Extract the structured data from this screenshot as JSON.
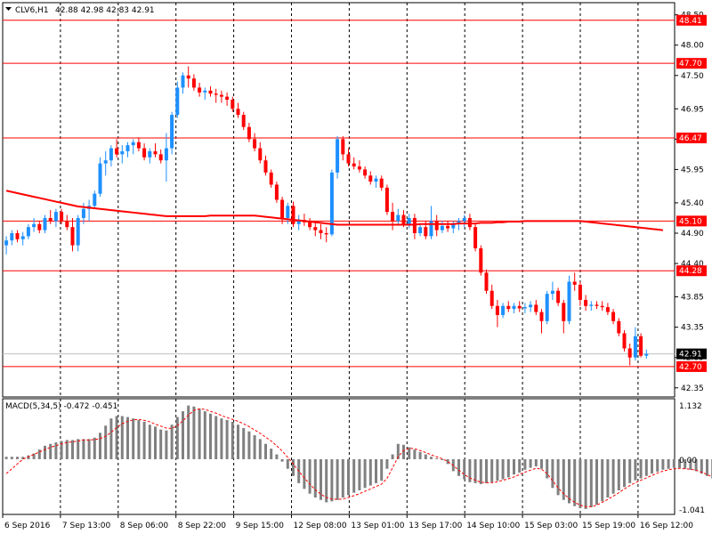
{
  "header": {
    "symbol": "CLV6,H1",
    "quote": "42.88 42.98 42.83 42.91"
  },
  "macd": {
    "label": "MACD(5,34,5) -0.472 -0.451",
    "ticks": [
      "1.132",
      "0.00",
      "-1.041"
    ]
  },
  "colors": {
    "background": "#ffffff",
    "bull": "#1e90ff",
    "bear": "#ff0000",
    "level": "#ff0000",
    "ma": "#ff0000",
    "histogram": "#808080",
    "signal": "#ff0000",
    "grid": "#000000",
    "current_line": "#c0c0c0",
    "current_badge": "#000000"
  },
  "icons": {
    "menu": "triangle-down-icon"
  },
  "price_ticks": [
    "48.50",
    "48.00",
    "47.50",
    "46.95",
    "46.45",
    "45.95",
    "45.40",
    "44.90",
    "44.40",
    "43.85",
    "43.35",
    "42.85",
    "42.35"
  ],
  "time_labels": [
    "6 Sep 2016",
    "7 Sep 13:00",
    "8 Sep 06:00",
    "8 Sep 22:00",
    "9 Sep 15:00",
    "12 Sep 08:00",
    "13 Sep 01:00",
    "13 Sep 17:00",
    "14 Sep 10:00",
    "15 Sep 03:00",
    "15 Sep 19:00",
    "16 Sep 12:00"
  ],
  "chart_data": {
    "type": "candlestick",
    "symbol": "CLV6",
    "timeframe": "H1",
    "ylim": [
      42.2,
      48.7
    ],
    "current_price": 42.91,
    "levels": [
      48.41,
      47.7,
      46.47,
      45.1,
      44.28,
      42.7
    ],
    "level_labels": [
      "48.41",
      "47.70",
      "46.47",
      "45.10",
      "44.28",
      "42.70"
    ],
    "current_label": "42.91",
    "candles": [
      [
        44.7,
        44.85,
        44.55,
        44.78
      ],
      [
        44.78,
        44.95,
        44.7,
        44.9
      ],
      [
        44.9,
        44.95,
        44.75,
        44.8
      ],
      [
        44.8,
        44.92,
        44.7,
        44.85
      ],
      [
        44.85,
        45.05,
        44.8,
        45.0
      ],
      [
        45.0,
        45.15,
        44.92,
        45.05
      ],
      [
        45.05,
        45.1,
        44.9,
        44.95
      ],
      [
        44.95,
        45.2,
        44.9,
        45.15
      ],
      [
        45.15,
        45.28,
        45.05,
        45.1
      ],
      [
        45.1,
        45.3,
        45.0,
        45.25
      ],
      [
        45.25,
        45.3,
        45.05,
        45.1
      ],
      [
        45.1,
        45.2,
        44.95,
        45.0
      ],
      [
        45.0,
        45.15,
        44.6,
        44.7
      ],
      [
        44.7,
        45.2,
        44.6,
        45.15
      ],
      [
        45.15,
        45.4,
        45.05,
        45.3
      ],
      [
        45.3,
        45.45,
        45.1,
        45.35
      ],
      [
        45.35,
        45.6,
        45.3,
        45.55
      ],
      [
        45.55,
        46.15,
        45.5,
        46.05
      ],
      [
        46.05,
        46.25,
        45.85,
        46.1
      ],
      [
        46.1,
        46.35,
        46.0,
        46.3
      ],
      [
        46.3,
        46.45,
        46.15,
        46.2
      ],
      [
        46.2,
        46.35,
        46.05,
        46.25
      ],
      [
        46.25,
        46.4,
        46.15,
        46.35
      ],
      [
        46.35,
        46.45,
        46.2,
        46.4
      ],
      [
        46.4,
        46.48,
        46.25,
        46.3
      ],
      [
        46.3,
        46.38,
        46.1,
        46.15
      ],
      [
        46.15,
        46.3,
        46.05,
        46.25
      ],
      [
        46.25,
        46.38,
        46.15,
        46.2
      ],
      [
        46.2,
        46.28,
        46.05,
        46.1
      ],
      [
        46.1,
        46.55,
        45.75,
        46.3
      ],
      [
        46.3,
        46.9,
        46.2,
        46.85
      ],
      [
        46.85,
        47.4,
        46.8,
        47.3
      ],
      [
        47.3,
        47.55,
        47.2,
        47.5
      ],
      [
        47.5,
        47.65,
        47.3,
        47.45
      ],
      [
        47.45,
        47.52,
        47.25,
        47.3
      ],
      [
        47.3,
        47.38,
        47.15,
        47.22
      ],
      [
        47.22,
        47.3,
        47.1,
        47.25
      ],
      [
        47.25,
        47.32,
        47.15,
        47.2
      ],
      [
        47.2,
        47.28,
        47.05,
        47.18
      ],
      [
        47.18,
        47.25,
        47.05,
        47.15
      ],
      [
        47.15,
        47.22,
        47.0,
        47.1
      ],
      [
        47.1,
        47.15,
        46.9,
        46.95
      ],
      [
        46.95,
        47.05,
        46.8,
        46.85
      ],
      [
        46.85,
        46.9,
        46.6,
        46.65
      ],
      [
        46.65,
        46.72,
        46.4,
        46.45
      ],
      [
        46.45,
        46.55,
        46.25,
        46.3
      ],
      [
        46.3,
        46.4,
        46.05,
        46.1
      ],
      [
        46.1,
        46.18,
        45.85,
        45.9
      ],
      [
        45.9,
        45.95,
        45.65,
        45.7
      ],
      [
        45.7,
        45.75,
        45.4,
        45.45
      ],
      [
        45.45,
        45.5,
        45.05,
        45.15
      ],
      [
        45.15,
        45.4,
        45.05,
        45.35
      ],
      [
        45.35,
        45.42,
        45.0,
        45.05
      ],
      [
        45.05,
        45.2,
        44.95,
        45.12
      ],
      [
        45.12,
        45.22,
        45.02,
        45.08
      ],
      [
        45.08,
        45.15,
        44.95,
        45.0
      ],
      [
        45.0,
        45.1,
        44.85,
        44.95
      ],
      [
        44.95,
        45.05,
        44.8,
        44.9
      ],
      [
        44.9,
        45.0,
        44.75,
        44.88
      ],
      [
        44.88,
        45.95,
        44.85,
        45.9
      ],
      [
        45.9,
        46.5,
        45.8,
        46.45
      ],
      [
        46.45,
        46.5,
        46.1,
        46.2
      ],
      [
        46.2,
        46.3,
        46.0,
        46.05
      ],
      [
        46.05,
        46.15,
        45.95,
        46.0
      ],
      [
        46.0,
        46.1,
        45.9,
        45.95
      ],
      [
        45.95,
        46.0,
        45.8,
        45.85
      ],
      [
        45.85,
        45.92,
        45.7,
        45.75
      ],
      [
        45.75,
        45.85,
        45.65,
        45.8
      ],
      [
        45.8,
        45.85,
        45.6,
        45.65
      ],
      [
        45.65,
        45.7,
        45.2,
        45.25
      ],
      [
        45.25,
        45.4,
        44.95,
        45.1
      ],
      [
        45.1,
        45.3,
        45.05,
        45.2
      ],
      [
        45.2,
        45.28,
        45.0,
        45.05
      ],
      [
        45.05,
        45.22,
        44.98,
        45.15
      ],
      [
        45.15,
        45.22,
        44.8,
        44.9
      ],
      [
        44.9,
        45.05,
        44.85,
        45.0
      ],
      [
        45.0,
        45.1,
        44.8,
        44.85
      ],
      [
        44.85,
        45.35,
        44.8,
        45.1
      ],
      [
        45.1,
        45.2,
        44.85,
        44.95
      ],
      [
        44.95,
        45.1,
        44.9,
        45.02
      ],
      [
        45.02,
        45.1,
        44.92,
        44.98
      ],
      [
        44.98,
        45.1,
        44.9,
        45.05
      ],
      [
        45.05,
        45.15,
        44.95,
        45.1
      ],
      [
        45.1,
        45.2,
        45.0,
        45.15
      ],
      [
        45.15,
        45.22,
        44.95,
        45.0
      ],
      [
        45.0,
        45.05,
        44.6,
        44.65
      ],
      [
        44.65,
        44.7,
        44.2,
        44.25
      ],
      [
        44.25,
        44.3,
        43.9,
        43.95
      ],
      [
        43.95,
        44.05,
        43.65,
        43.7
      ],
      [
        43.7,
        43.8,
        43.35,
        43.55
      ],
      [
        43.55,
        43.75,
        43.5,
        43.7
      ],
      [
        43.7,
        43.78,
        43.6,
        43.65
      ],
      [
        43.65,
        43.75,
        43.58,
        43.7
      ],
      [
        43.7,
        43.78,
        43.6,
        43.66
      ],
      [
        43.66,
        43.75,
        43.58,
        43.68
      ],
      [
        43.68,
        43.78,
        43.6,
        43.72
      ],
      [
        43.72,
        43.8,
        43.55,
        43.6
      ],
      [
        43.6,
        43.65,
        43.25,
        43.45
      ],
      [
        43.45,
        43.95,
        43.4,
        43.9
      ],
      [
        43.9,
        44.1,
        43.8,
        43.95
      ],
      [
        43.95,
        44.0,
        43.7,
        43.75
      ],
      [
        43.75,
        43.8,
        43.25,
        43.45
      ],
      [
        43.45,
        44.2,
        43.4,
        44.1
      ],
      [
        44.1,
        44.25,
        43.95,
        44.05
      ],
      [
        44.05,
        44.1,
        43.7,
        43.8
      ],
      [
        43.8,
        43.88,
        43.62,
        43.7
      ],
      [
        43.7,
        43.78,
        43.62,
        43.72
      ],
      [
        43.72,
        43.78,
        43.65,
        43.7
      ],
      [
        43.7,
        43.78,
        43.62,
        43.68
      ],
      [
        43.68,
        43.75,
        43.55,
        43.6
      ],
      [
        43.6,
        43.65,
        43.4,
        43.45
      ],
      [
        43.45,
        43.5,
        43.2,
        43.25
      ],
      [
        43.25,
        43.3,
        42.95,
        43.0
      ],
      [
        43.0,
        43.08,
        42.72,
        42.85
      ],
      [
        42.85,
        43.35,
        42.8,
        43.2
      ],
      [
        43.2,
        43.25,
        42.85,
        42.88
      ],
      [
        42.88,
        42.98,
        42.83,
        42.91
      ]
    ],
    "moving_average": [
      45.6,
      45.58,
      45.56,
      45.54,
      45.52,
      45.5,
      45.48,
      45.46,
      45.44,
      45.42,
      45.4,
      45.38,
      45.36,
      45.34,
      45.33,
      45.32,
      45.31,
      45.3,
      45.29,
      45.28,
      45.27,
      45.26,
      45.25,
      45.24,
      45.23,
      45.22,
      45.21,
      45.2,
      45.19,
      45.18,
      45.18,
      45.18,
      45.18,
      45.18,
      45.18,
      45.18,
      45.18,
      45.19,
      45.19,
      45.19,
      45.19,
      45.19,
      45.19,
      45.19,
      45.19,
      45.19,
      45.18,
      45.17,
      45.16,
      45.15,
      45.14,
      45.13,
      45.12,
      45.11,
      45.1,
      45.09,
      45.08,
      45.07,
      45.06,
      45.05,
      45.04,
      45.04,
      45.04,
      45.04,
      45.04,
      45.04,
      45.04,
      45.04,
      45.04,
      45.04,
      45.04,
      45.04,
      45.04,
      45.04,
      45.04,
      45.05,
      45.05,
      45.05,
      45.05,
      45.05,
      45.05,
      45.05,
      45.06,
      45.06,
      45.06,
      45.06,
      45.07,
      45.07,
      45.07,
      45.08,
      45.08,
      45.09,
      45.09,
      45.09,
      45.1,
      45.1,
      45.1,
      45.1,
      45.1,
      45.1,
      45.1,
      45.1,
      45.1,
      45.1,
      45.1,
      45.09,
      45.08,
      45.07,
      45.06,
      45.05,
      45.04,
      45.03,
      45.02,
      45.01,
      45.0,
      44.99,
      44.98,
      44.97,
      44.96,
      44.95
    ],
    "macd_histogram": [
      0.05,
      0.05,
      0.05,
      0.05,
      0.08,
      0.12,
      0.2,
      0.28,
      0.32,
      0.35,
      0.38,
      0.4,
      0.4,
      0.42,
      0.42,
      0.42,
      0.45,
      0.55,
      0.7,
      0.85,
      0.9,
      0.9,
      0.88,
      0.85,
      0.82,
      0.78,
      0.72,
      0.68,
      0.62,
      0.6,
      0.72,
      0.88,
      1.0,
      1.12,
      1.1,
      1.05,
      1.0,
      0.95,
      0.9,
      0.85,
      0.82,
      0.78,
      0.72,
      0.65,
      0.58,
      0.5,
      0.42,
      0.32,
      0.22,
      0.1,
      -0.05,
      -0.2,
      -0.35,
      -0.5,
      -0.62,
      -0.72,
      -0.8,
      -0.85,
      -0.9,
      -0.88,
      -0.85,
      -0.8,
      -0.75,
      -0.7,
      -0.65,
      -0.6,
      -0.55,
      -0.5,
      -0.45,
      -0.2,
      0.1,
      0.32,
      0.3,
      0.25,
      0.2,
      0.15,
      0.1,
      0.05,
      0.02,
      -0.02,
      -0.1,
      -0.25,
      -0.35,
      -0.42,
      -0.48,
      -0.5,
      -0.52,
      -0.5,
      -0.48,
      -0.45,
      -0.42,
      -0.38,
      -0.32,
      -0.28,
      -0.22,
      -0.18,
      -0.15,
      -0.2,
      -0.4,
      -0.6,
      -0.75,
      -0.85,
      -0.92,
      -0.98,
      -1.02,
      -1.04,
      -1.0,
      -0.95,
      -0.88,
      -0.8,
      -0.72,
      -0.65,
      -0.58,
      -0.5,
      -0.44,
      -0.4,
      -0.35,
      -0.3,
      -0.26,
      -0.22,
      -0.2,
      -0.18,
      -0.18,
      -0.2,
      -0.22,
      -0.25,
      -0.3,
      -0.35,
      -0.4,
      -0.45,
      -0.47
    ],
    "macd_signal": [
      -0.3,
      -0.2,
      -0.1,
      0.0,
      0.05,
      0.1,
      0.15,
      0.2,
      0.25,
      0.28,
      0.32,
      0.35,
      0.36,
      0.38,
      0.4,
      0.4,
      0.41,
      0.43,
      0.48,
      0.56,
      0.66,
      0.74,
      0.79,
      0.82,
      0.83,
      0.81,
      0.78,
      0.73,
      0.69,
      0.65,
      0.64,
      0.7,
      0.8,
      0.92,
      1.02,
      1.05,
      1.04,
      1.0,
      0.96,
      0.91,
      0.87,
      0.83,
      0.79,
      0.74,
      0.68,
      0.61,
      0.54,
      0.46,
      0.38,
      0.28,
      0.17,
      0.04,
      -0.1,
      -0.25,
      -0.39,
      -0.52,
      -0.64,
      -0.73,
      -0.8,
      -0.83,
      -0.84,
      -0.83,
      -0.8,
      -0.76,
      -0.72,
      -0.67,
      -0.62,
      -0.57,
      -0.52,
      -0.4,
      -0.18,
      0.05,
      0.18,
      0.23,
      0.22,
      0.18,
      0.14,
      0.09,
      0.05,
      0.01,
      -0.05,
      -0.13,
      -0.23,
      -0.32,
      -0.39,
      -0.44,
      -0.48,
      -0.49,
      -0.49,
      -0.47,
      -0.44,
      -0.41,
      -0.37,
      -0.32,
      -0.27,
      -0.23,
      -0.19,
      -0.21,
      -0.3,
      -0.45,
      -0.6,
      -0.72,
      -0.82,
      -0.9,
      -0.96,
      -0.99,
      -0.99,
      -0.96,
      -0.9,
      -0.84,
      -0.77,
      -0.7,
      -0.62,
      -0.55,
      -0.49,
      -0.44,
      -0.39,
      -0.34,
      -0.29,
      -0.25,
      -0.22,
      -0.2,
      -0.19,
      -0.2,
      -0.21,
      -0.23,
      -0.27,
      -0.32,
      -0.37,
      -0.42,
      -0.45
    ]
  }
}
